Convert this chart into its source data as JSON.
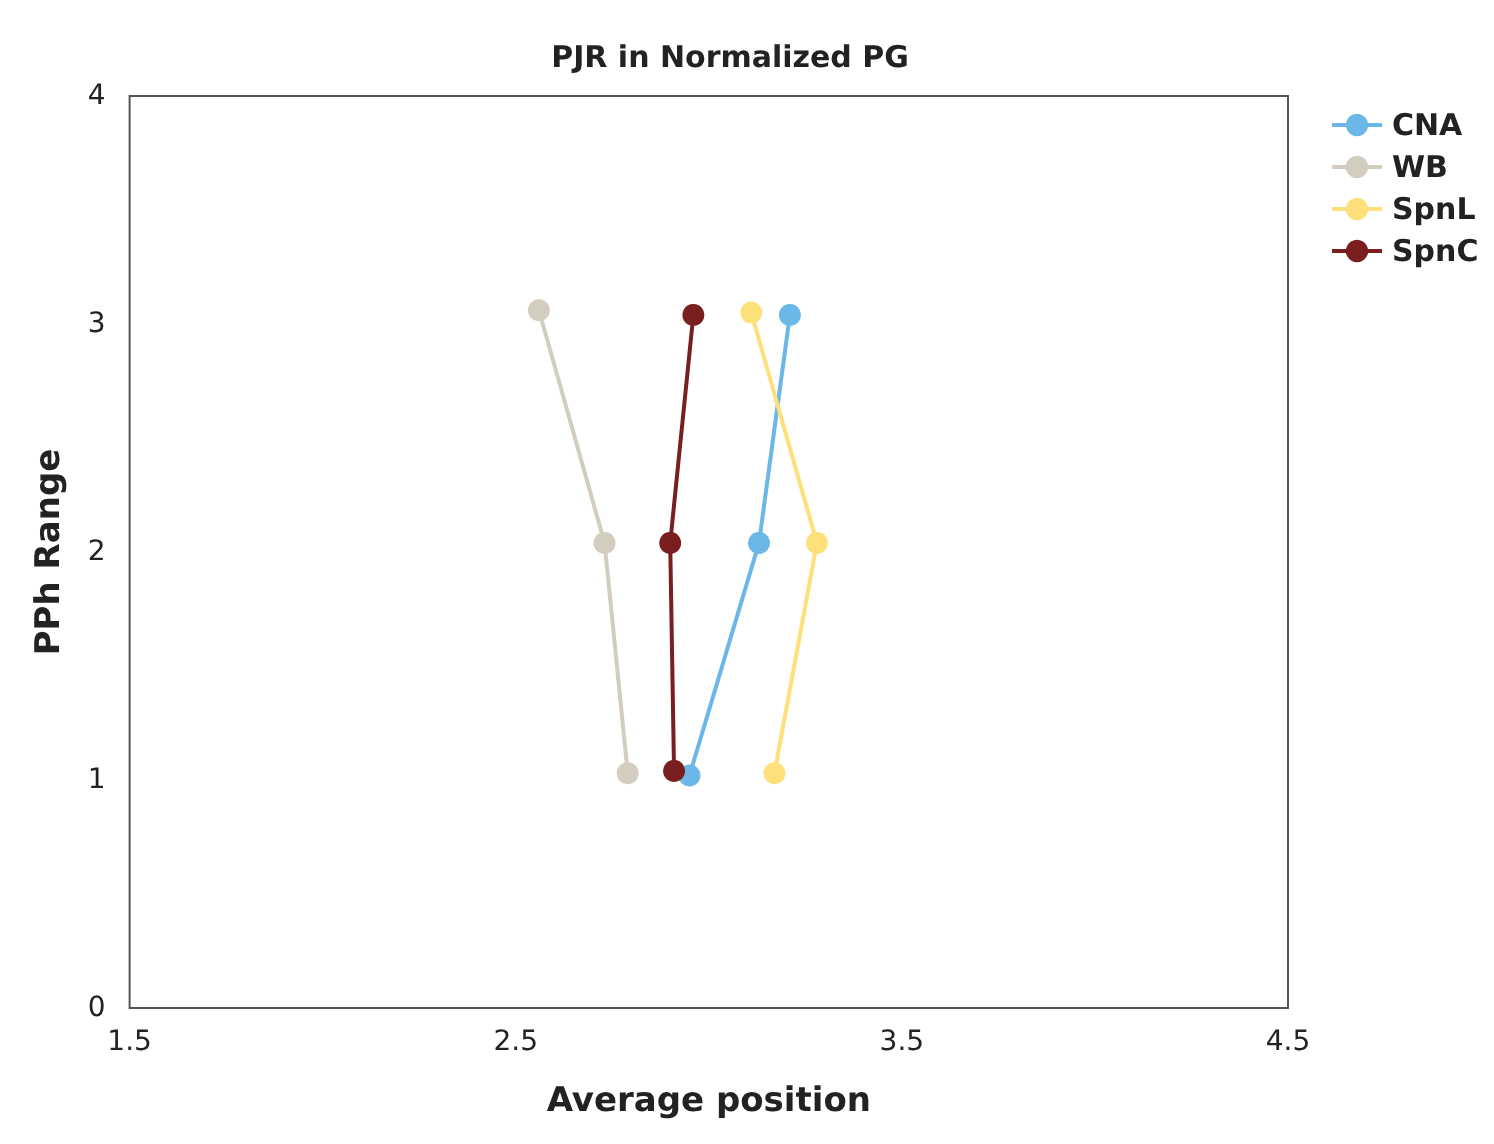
{
  "chart_data": {
    "type": "line",
    "title": "PJR in Normalized PG",
    "xlabel": "Average position",
    "ylabel": "PPh Range",
    "xlim": [
      1.5,
      4.5
    ],
    "xticks": [
      1.5,
      2.5,
      3.5,
      4.5
    ],
    "ylim": [
      0,
      4
    ],
    "yticks": [
      0,
      1,
      2,
      3,
      4
    ],
    "grid": false,
    "legend": "top right",
    "marker": "circle",
    "line_style": "solid",
    "series": [
      {
        "name": "CNA",
        "color": "#6bb8e8",
        "x": [
          3.21,
          3.13,
          2.95
        ],
        "values": [
          3.04,
          2.04,
          1.02
        ]
      },
      {
        "name": "WB",
        "color": "#d3cdbf",
        "x": [
          2.56,
          2.73,
          2.79
        ],
        "values": [
          3.06,
          2.04,
          1.03
        ]
      },
      {
        "name": "SpnL",
        "color": "#fde07a",
        "x": [
          3.11,
          3.28,
          3.17
        ],
        "values": [
          3.05,
          2.04,
          1.03
        ]
      },
      {
        "name": "SpnC",
        "color": "#7a1f1f",
        "x": [
          2.96,
          2.9,
          2.91
        ],
        "values": [
          3.04,
          2.04,
          1.04
        ]
      }
    ]
  }
}
